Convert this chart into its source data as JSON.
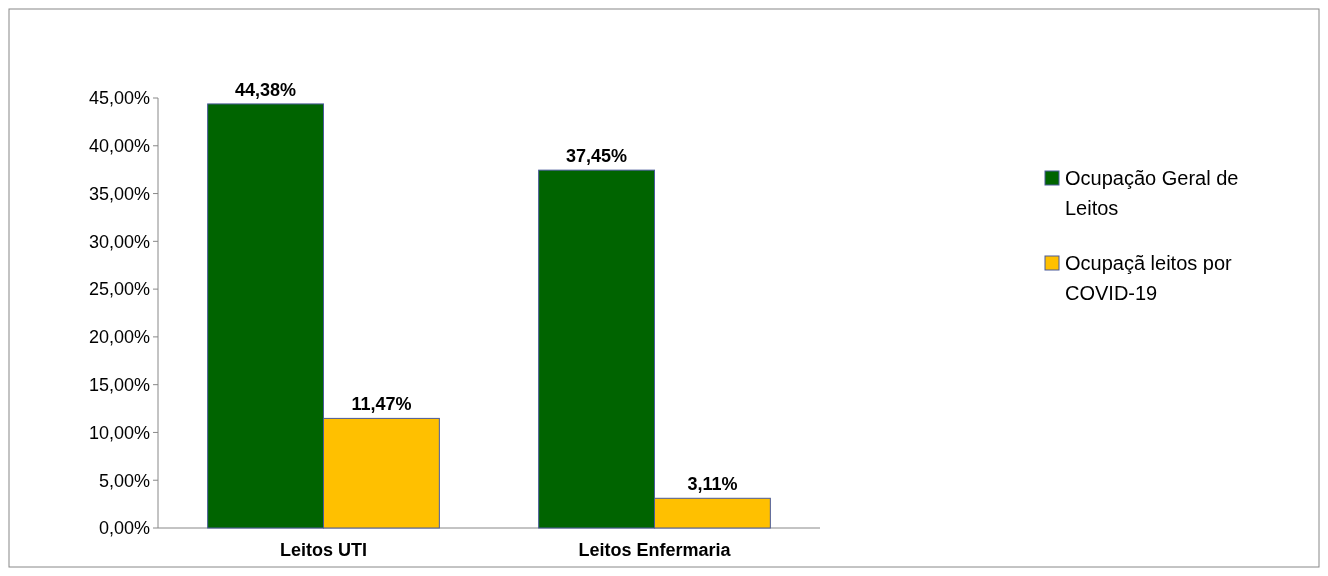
{
  "chart_data": {
    "type": "bar",
    "categories": [
      "Leitos UTI",
      "Leitos Enfermaria"
    ],
    "series": [
      {
        "name": "Ocupação Geral de Leitos",
        "color": "#006400",
        "values": [
          44.38,
          37.45
        ],
        "value_labels": [
          "44,38%",
          "37,45%"
        ]
      },
      {
        "name": "Ocupaçã leitos por COVID-19",
        "color": "#ffc000",
        "values": [
          11.47,
          3.11
        ],
        "value_labels": [
          "11,47%",
          "3,11%"
        ]
      }
    ],
    "ylim": [
      0,
      45
    ],
    "yticks": [
      {
        "value": 0,
        "label": "0,00%"
      },
      {
        "value": 5,
        "label": "5,00%"
      },
      {
        "value": 10,
        "label": "10,00%"
      },
      {
        "value": 15,
        "label": "15,00%"
      },
      {
        "value": 20,
        "label": "20,00%"
      },
      {
        "value": 25,
        "label": "25,00%"
      },
      {
        "value": 30,
        "label": "30,00%"
      },
      {
        "value": 35,
        "label": "35,00%"
      },
      {
        "value": 40,
        "label": "40,00%"
      },
      {
        "value": 45,
        "label": "45,00%"
      }
    ],
    "grid": false,
    "legend": "right"
  }
}
